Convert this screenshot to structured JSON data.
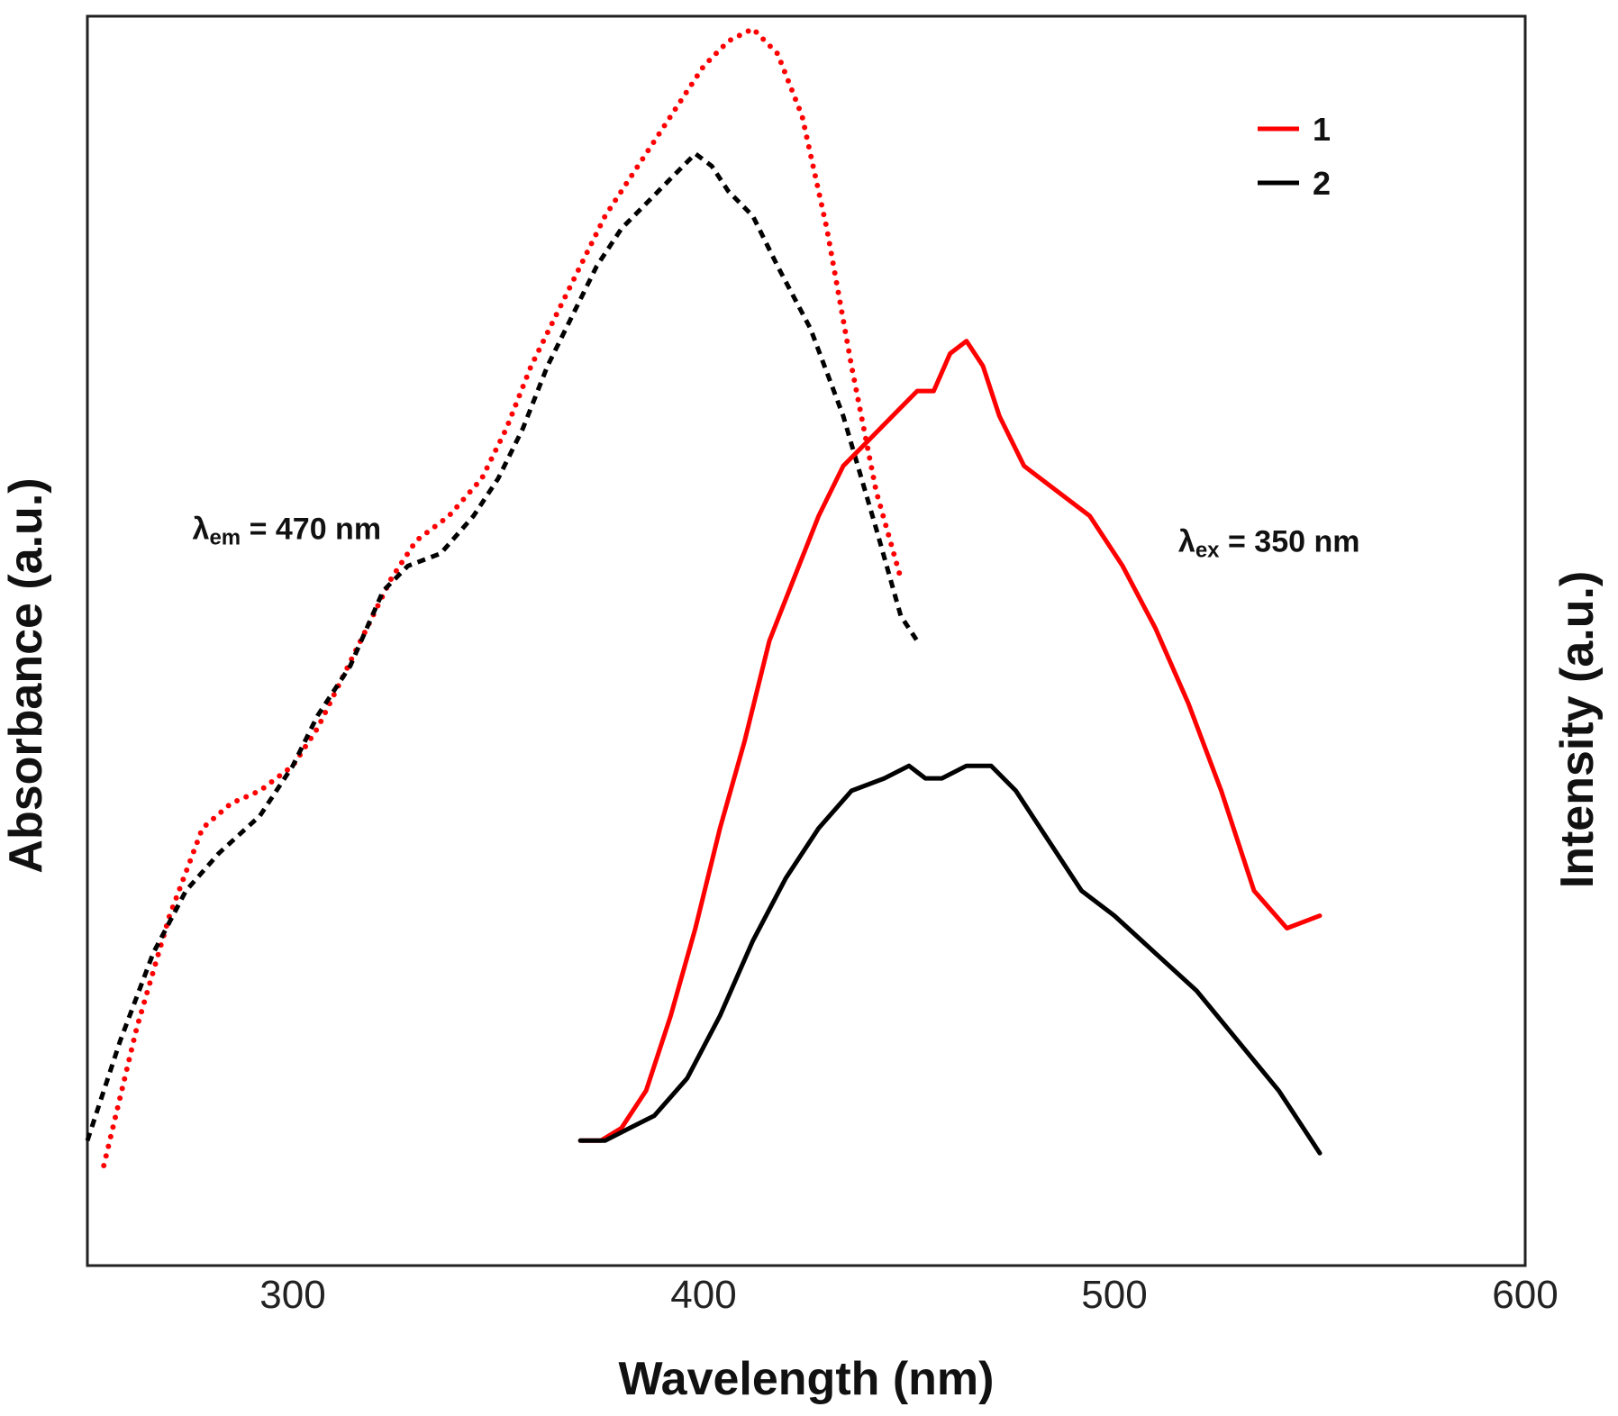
{
  "chart_data": {
    "type": "line",
    "title": "",
    "xlabel": "Wavelength (nm)",
    "ylabel_left": "Absorbance (a.u.)",
    "ylabel_right": "Intensity (a.u.)",
    "xlim": [
      250,
      600
    ],
    "ylim": [
      0,
      1
    ],
    "xticks": [
      300,
      400,
      500,
      600
    ],
    "grid": false,
    "legend": {
      "placement": "top-right",
      "entries": [
        {
          "label": "1",
          "color": "#ff0000"
        },
        {
          "label": "2",
          "color": "#000000"
        }
      ]
    },
    "annotations": [
      {
        "symbol": "λ",
        "sub": "em",
        "text": " = 470 nm",
        "x": 292,
        "y": 0.59
      },
      {
        "symbol": "λ",
        "sub": "ex",
        "text": " = 350 nm",
        "x": 532,
        "y": 0.58
      }
    ],
    "series": [
      {
        "name": "1",
        "kind": "absorbance",
        "style": "dotted",
        "color": "#ff0000",
        "x": [
          254,
          262,
          270,
          278,
          285,
          292,
          300,
          306,
          312,
          318,
          324,
          330,
          338,
          346,
          352,
          358,
          364,
          370,
          376,
          382,
          388,
          394,
          400,
          406,
          412,
          418,
          424,
          430,
          436,
          442,
          448
        ],
        "y": [
          0.08,
          0.19,
          0.28,
          0.35,
          0.37,
          0.38,
          0.4,
          0.43,
          0.47,
          0.51,
          0.55,
          0.58,
          0.6,
          0.63,
          0.67,
          0.72,
          0.76,
          0.8,
          0.84,
          0.87,
          0.9,
          0.93,
          0.96,
          0.98,
          0.99,
          0.97,
          0.92,
          0.83,
          0.72,
          0.62,
          0.55
        ]
      },
      {
        "name": "2",
        "kind": "absorbance",
        "style": "dashed",
        "color": "#000000",
        "x": [
          250,
          258,
          266,
          274,
          282,
          292,
          300,
          306,
          314,
          322,
          328,
          336,
          344,
          350,
          356,
          362,
          368,
          374,
          380,
          386,
          392,
          398,
          402,
          406,
          412,
          418,
          426,
          434,
          442,
          448,
          452
        ],
        "y": [
          0.1,
          0.18,
          0.25,
          0.3,
          0.33,
          0.36,
          0.4,
          0.44,
          0.48,
          0.54,
          0.56,
          0.57,
          0.6,
          0.63,
          0.67,
          0.72,
          0.76,
          0.8,
          0.83,
          0.85,
          0.87,
          0.89,
          0.88,
          0.86,
          0.84,
          0.8,
          0.75,
          0.68,
          0.59,
          0.52,
          0.5
        ]
      },
      {
        "name": "1",
        "kind": "emission",
        "style": "solid",
        "color": "#ff0000",
        "x": [
          370,
          375,
          380,
          386,
          392,
          398,
          404,
          410,
          416,
          422,
          428,
          434,
          440,
          446,
          452,
          456,
          460,
          464,
          468,
          472,
          478,
          486,
          494,
          502,
          510,
          518,
          526,
          534,
          542,
          550
        ],
        "y": [
          0.1,
          0.1,
          0.11,
          0.14,
          0.2,
          0.27,
          0.35,
          0.42,
          0.5,
          0.55,
          0.6,
          0.64,
          0.66,
          0.68,
          0.7,
          0.7,
          0.73,
          0.74,
          0.72,
          0.68,
          0.64,
          0.62,
          0.6,
          0.56,
          0.51,
          0.45,
          0.38,
          0.3,
          0.27,
          0.28
        ]
      },
      {
        "name": "2",
        "kind": "emission",
        "style": "solid",
        "color": "#000000",
        "x": [
          370,
          376,
          382,
          388,
          396,
          404,
          412,
          420,
          428,
          436,
          444,
          450,
          454,
          458,
          464,
          470,
          476,
          484,
          492,
          500,
          510,
          520,
          530,
          540,
          550
        ],
        "y": [
          0.1,
          0.1,
          0.11,
          0.12,
          0.15,
          0.2,
          0.26,
          0.31,
          0.35,
          0.38,
          0.39,
          0.4,
          0.39,
          0.39,
          0.4,
          0.4,
          0.38,
          0.34,
          0.3,
          0.28,
          0.25,
          0.22,
          0.18,
          0.14,
          0.09
        ]
      }
    ]
  }
}
